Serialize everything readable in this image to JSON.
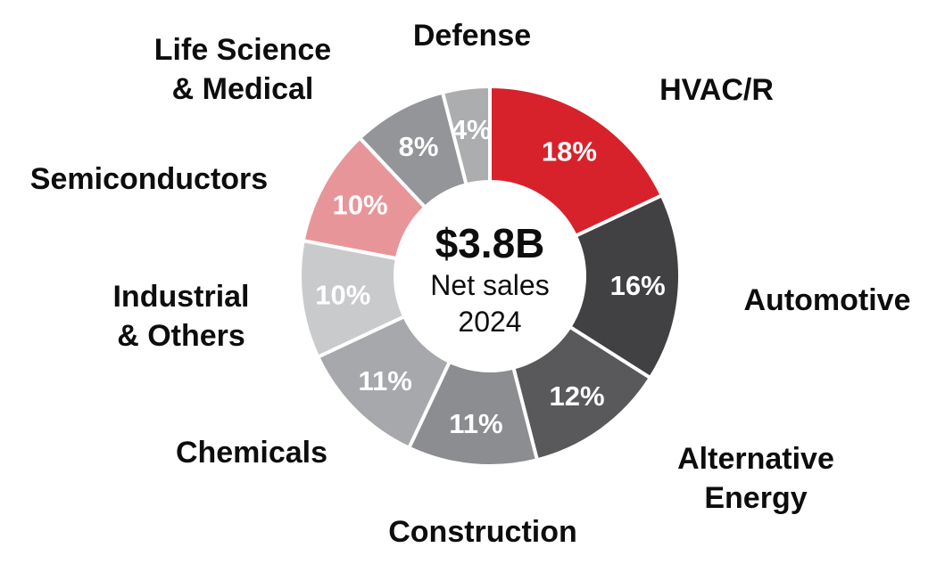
{
  "chart_data": {
    "type": "pie",
    "variant": "donut",
    "direction": "clockwise",
    "start_angle_deg": 0,
    "unit": "percent",
    "center": {
      "headline": "$3.8B",
      "subline1": "Net sales",
      "subline2": "2024"
    },
    "segments": [
      {
        "id": "hvacr",
        "label": "HVAC/R",
        "label_display": "HVAC/R",
        "value": 18,
        "pct": "18%",
        "color": "#D7222C"
      },
      {
        "id": "automotive",
        "label": "Automotive",
        "label_display": "Automotive",
        "value": 16,
        "pct": "16%",
        "color": "#414042"
      },
      {
        "id": "alternative-energy",
        "label": "Alternative Energy",
        "label_display": "Alternative Energy",
        "value": 12,
        "pct": "12%",
        "color": "#59595C"
      },
      {
        "id": "construction",
        "label": "Construction",
        "label_display": "Construction",
        "value": 11,
        "pct": "11%",
        "color": "#8B8D90"
      },
      {
        "id": "chemicals",
        "label": "Chemicals",
        "label_display": "Chemicals",
        "value": 11,
        "pct": "11%",
        "color": "#A6A8AB"
      },
      {
        "id": "industrial-others",
        "label": "Industrial & Others",
        "label_display": "Industrial\n& Others",
        "value": 10,
        "pct": "10%",
        "color": "#C9CACC"
      },
      {
        "id": "semiconductors",
        "label": "Semiconductors",
        "label_display": "Semiconductors",
        "value": 10,
        "pct": "10%",
        "color": "#E8959A"
      },
      {
        "id": "life-science-medical",
        "label": "Life Science & Medical",
        "label_display": "Life Science\n& Medical",
        "value": 8,
        "pct": "8%",
        "color": "#939598"
      },
      {
        "id": "defense",
        "label": "Defense",
        "label_display": "Defense",
        "value": 4,
        "pct": "4%",
        "color": "#ABADAF"
      }
    ]
  }
}
